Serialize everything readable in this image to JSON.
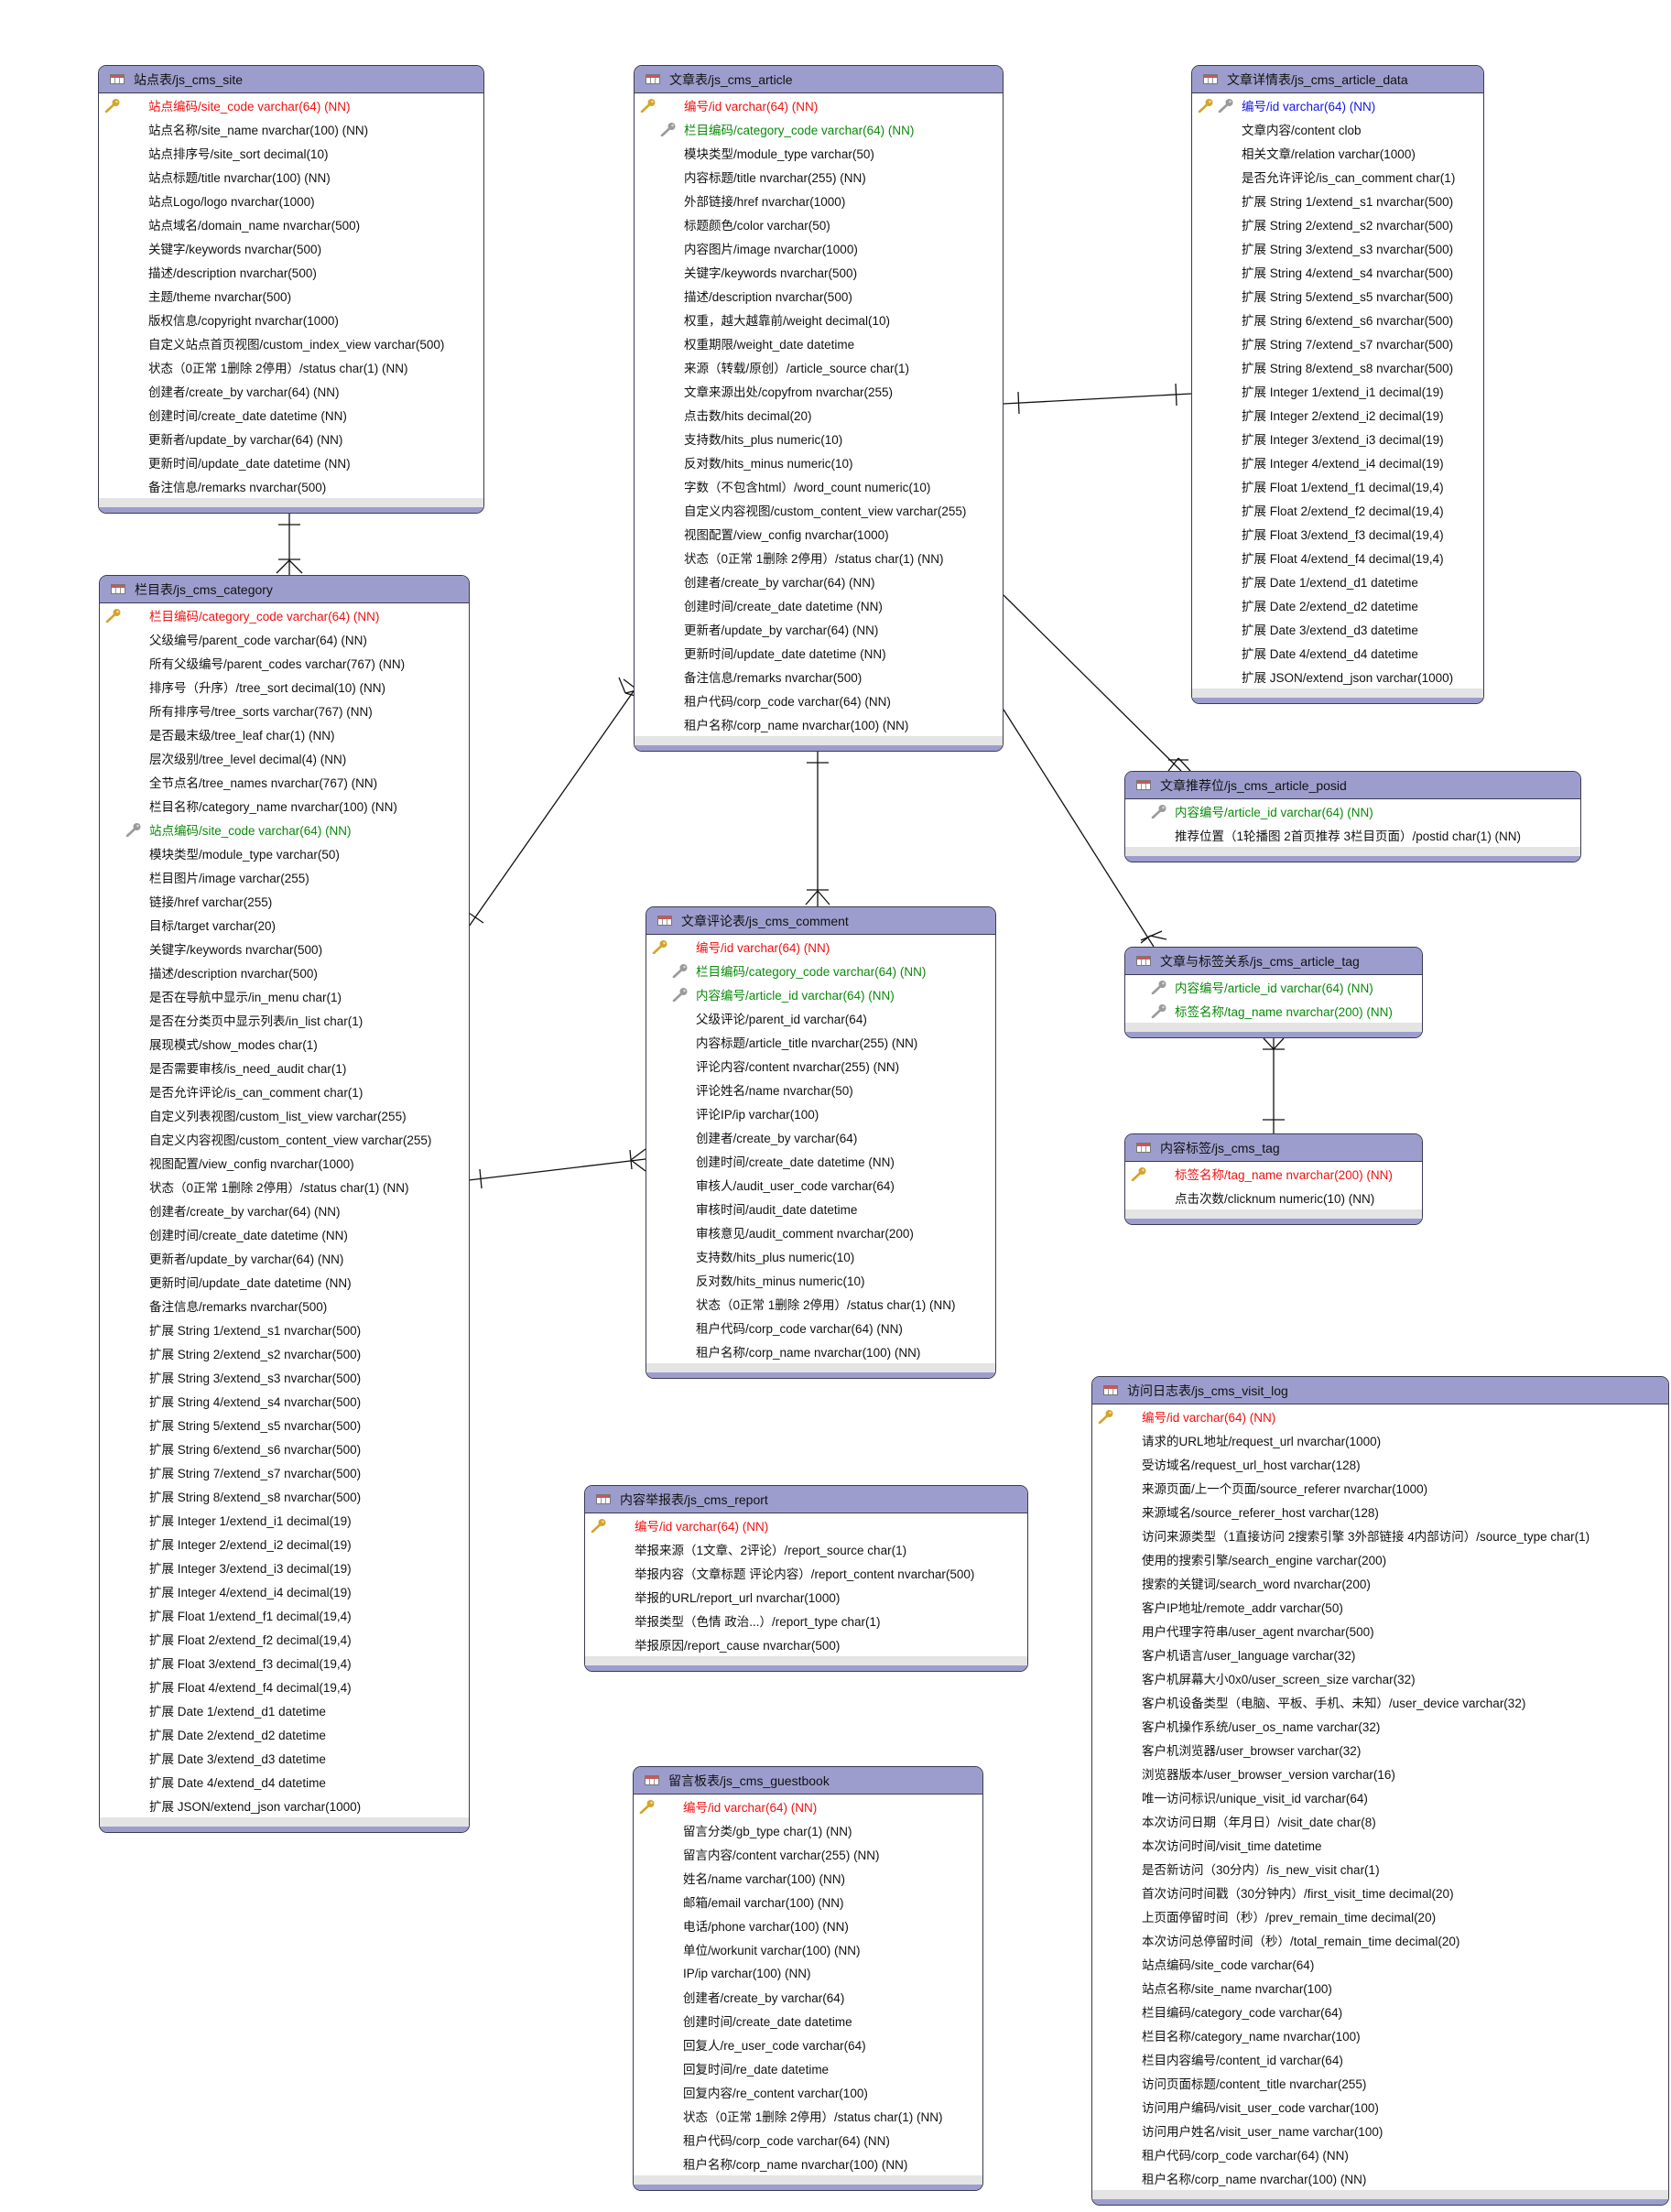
{
  "tables": [
    {
      "title": "站点表/js_cms_site",
      "fields": [
        {
          "text": "站点编码/site_code varchar(64) (NN)",
          "key": "primary-key"
        },
        {
          "text": "站点名称/site_name nvarchar(100) (NN)",
          "key": ""
        },
        {
          "text": "站点排序号/site_sort decimal(10)",
          "key": ""
        },
        {
          "text": "站点标题/title nvarchar(100) (NN)",
          "key": ""
        },
        {
          "text": "站点Logo/logo nvarchar(1000)",
          "key": ""
        },
        {
          "text": "站点域名/domain_name nvarchar(500)",
          "key": ""
        },
        {
          "text": "关键字/keywords nvarchar(500)",
          "key": ""
        },
        {
          "text": "描述/description nvarchar(500)",
          "key": ""
        },
        {
          "text": "主题/theme nvarchar(500)",
          "key": ""
        },
        {
          "text": "版权信息/copyright nvarchar(1000)",
          "key": ""
        },
        {
          "text": "自定义站点首页视图/custom_index_view varchar(500)",
          "key": ""
        },
        {
          "text": "状态（0正常 1删除 2停用）/status char(1) (NN)",
          "key": ""
        },
        {
          "text": "创建者/create_by varchar(64) (NN)",
          "key": ""
        },
        {
          "text": "创建时间/create_date datetime (NN)",
          "key": ""
        },
        {
          "text": "更新者/update_by varchar(64) (NN)",
          "key": ""
        },
        {
          "text": "更新时间/update_date datetime (NN)",
          "key": ""
        },
        {
          "text": "备注信息/remarks nvarchar(500)",
          "key": ""
        }
      ]
    },
    {
      "title": "栏目表/js_cms_category",
      "fields": [
        {
          "text": "栏目编码/category_code varchar(64) (NN)",
          "key": "primary-key"
        },
        {
          "text": "父级编号/parent_code varchar(64) (NN)",
          "key": ""
        },
        {
          "text": "所有父级编号/parent_codes varchar(767) (NN)",
          "key": ""
        },
        {
          "text": "排序号（升序）/tree_sort decimal(10) (NN)",
          "key": ""
        },
        {
          "text": "所有排序号/tree_sorts varchar(767) (NN)",
          "key": ""
        },
        {
          "text": "是否最末级/tree_leaf char(1) (NN)",
          "key": ""
        },
        {
          "text": "层次级别/tree_level decimal(4) (NN)",
          "key": ""
        },
        {
          "text": "全节点名/tree_names nvarchar(767) (NN)",
          "key": ""
        },
        {
          "text": "栏目名称/category_name nvarchar(100) (NN)",
          "key": ""
        },
        {
          "text": "站点编码/site_code varchar(64) (NN)",
          "key": "foreign-key"
        },
        {
          "text": "模块类型/module_type varchar(50)",
          "key": ""
        },
        {
          "text": "栏目图片/image varchar(255)",
          "key": ""
        },
        {
          "text": "链接/href varchar(255)",
          "key": ""
        },
        {
          "text": "目标/target varchar(20)",
          "key": ""
        },
        {
          "text": "关键字/keywords nvarchar(500)",
          "key": ""
        },
        {
          "text": "描述/description nvarchar(500)",
          "key": ""
        },
        {
          "text": "是否在导航中显示/in_menu char(1)",
          "key": ""
        },
        {
          "text": "是否在分类页中显示列表/in_list char(1)",
          "key": ""
        },
        {
          "text": "展现模式/show_modes char(1)",
          "key": ""
        },
        {
          "text": "是否需要审核/is_need_audit char(1)",
          "key": ""
        },
        {
          "text": "是否允许评论/is_can_comment char(1)",
          "key": ""
        },
        {
          "text": "自定义列表视图/custom_list_view varchar(255)",
          "key": ""
        },
        {
          "text": "自定义内容视图/custom_content_view varchar(255)",
          "key": ""
        },
        {
          "text": "视图配置/view_config nvarchar(1000)",
          "key": ""
        },
        {
          "text": "状态（0正常 1删除 2停用）/status char(1) (NN)",
          "key": ""
        },
        {
          "text": "创建者/create_by varchar(64) (NN)",
          "key": ""
        },
        {
          "text": "创建时间/create_date datetime (NN)",
          "key": ""
        },
        {
          "text": "更新者/update_by varchar(64) (NN)",
          "key": ""
        },
        {
          "text": "更新时间/update_date datetime (NN)",
          "key": ""
        },
        {
          "text": "备注信息/remarks nvarchar(500)",
          "key": ""
        },
        {
          "text": "扩展 String 1/extend_s1 nvarchar(500)",
          "key": ""
        },
        {
          "text": "扩展 String 2/extend_s2 nvarchar(500)",
          "key": ""
        },
        {
          "text": "扩展 String 3/extend_s3 nvarchar(500)",
          "key": ""
        },
        {
          "text": "扩展 String 4/extend_s4 nvarchar(500)",
          "key": ""
        },
        {
          "text": "扩展 String 5/extend_s5 nvarchar(500)",
          "key": ""
        },
        {
          "text": "扩展 String 6/extend_s6 nvarchar(500)",
          "key": ""
        },
        {
          "text": "扩展 String 7/extend_s7 nvarchar(500)",
          "key": ""
        },
        {
          "text": "扩展 String 8/extend_s8 nvarchar(500)",
          "key": ""
        },
        {
          "text": "扩展 Integer 1/extend_i1 decimal(19)",
          "key": ""
        },
        {
          "text": "扩展 Integer 2/extend_i2 decimal(19)",
          "key": ""
        },
        {
          "text": "扩展 Integer 3/extend_i3 decimal(19)",
          "key": ""
        },
        {
          "text": "扩展 Integer 4/extend_i4 decimal(19)",
          "key": ""
        },
        {
          "text": "扩展 Float 1/extend_f1 decimal(19,4)",
          "key": ""
        },
        {
          "text": "扩展 Float 2/extend_f2 decimal(19,4)",
          "key": ""
        },
        {
          "text": "扩展 Float 3/extend_f3 decimal(19,4)",
          "key": ""
        },
        {
          "text": "扩展 Float 4/extend_f4 decimal(19,4)",
          "key": ""
        },
        {
          "text": "扩展 Date 1/extend_d1 datetime",
          "key": ""
        },
        {
          "text": "扩展 Date 2/extend_d2 datetime",
          "key": ""
        },
        {
          "text": "扩展 Date 3/extend_d3 datetime",
          "key": ""
        },
        {
          "text": "扩展 Date 4/extend_d4 datetime",
          "key": ""
        },
        {
          "text": "扩展 JSON/extend_json varchar(1000)",
          "key": ""
        }
      ]
    },
    {
      "title": "文章表/js_cms_article",
      "fields": [
        {
          "text": "编号/id varchar(64) (NN)",
          "key": "primary-key"
        },
        {
          "text": "栏目编码/category_code varchar(64) (NN)",
          "key": "foreign-key"
        },
        {
          "text": "模块类型/module_type varchar(50)",
          "key": ""
        },
        {
          "text": "内容标题/title nvarchar(255) (NN)",
          "key": ""
        },
        {
          "text": "外部链接/href nvarchar(1000)",
          "key": ""
        },
        {
          "text": "标题颜色/color varchar(50)",
          "key": ""
        },
        {
          "text": "内容图片/image nvarchar(1000)",
          "key": ""
        },
        {
          "text": "关键字/keywords nvarchar(500)",
          "key": ""
        },
        {
          "text": "描述/description nvarchar(500)",
          "key": ""
        },
        {
          "text": "权重，越大越靠前/weight decimal(10)",
          "key": ""
        },
        {
          "text": "权重期限/weight_date datetime",
          "key": ""
        },
        {
          "text": "来源（转载/原创）/article_source char(1)",
          "key": ""
        },
        {
          "text": "文章来源出处/copyfrom nvarchar(255)",
          "key": ""
        },
        {
          "text": "点击数/hits decimal(20)",
          "key": ""
        },
        {
          "text": "支持数/hits_plus numeric(10)",
          "key": ""
        },
        {
          "text": "反对数/hits_minus numeric(10)",
          "key": ""
        },
        {
          "text": "字数（不包含html）/word_count numeric(10)",
          "key": ""
        },
        {
          "text": "自定义内容视图/custom_content_view varchar(255)",
          "key": ""
        },
        {
          "text": "视图配置/view_config nvarchar(1000)",
          "key": ""
        },
        {
          "text": "状态（0正常 1删除 2停用）/status char(1) (NN)",
          "key": ""
        },
        {
          "text": "创建者/create_by varchar(64) (NN)",
          "key": ""
        },
        {
          "text": "创建时间/create_date datetime (NN)",
          "key": ""
        },
        {
          "text": "更新者/update_by varchar(64) (NN)",
          "key": ""
        },
        {
          "text": "更新时间/update_date datetime (NN)",
          "key": ""
        },
        {
          "text": "备注信息/remarks nvarchar(500)",
          "key": ""
        },
        {
          "text": "租户代码/corp_code varchar(64) (NN)",
          "key": ""
        },
        {
          "text": "租户名称/corp_name nvarchar(100) (NN)",
          "key": ""
        }
      ]
    },
    {
      "title": "文章详情表/js_cms_article_data",
      "fields": [
        {
          "text": "编号/id varchar(64) (NN)",
          "key": "primary-foreign-key"
        },
        {
          "text": "文章内容/content clob",
          "key": ""
        },
        {
          "text": "相关文章/relation varchar(1000)",
          "key": ""
        },
        {
          "text": "是否允许评论/is_can_comment char(1)",
          "key": ""
        },
        {
          "text": "扩展 String 1/extend_s1 nvarchar(500)",
          "key": ""
        },
        {
          "text": "扩展 String 2/extend_s2 nvarchar(500)",
          "key": ""
        },
        {
          "text": "扩展 String 3/extend_s3 nvarchar(500)",
          "key": ""
        },
        {
          "text": "扩展 String 4/extend_s4 nvarchar(500)",
          "key": ""
        },
        {
          "text": "扩展 String 5/extend_s5 nvarchar(500)",
          "key": ""
        },
        {
          "text": "扩展 String 6/extend_s6 nvarchar(500)",
          "key": ""
        },
        {
          "text": "扩展 String 7/extend_s7 nvarchar(500)",
          "key": ""
        },
        {
          "text": "扩展 String 8/extend_s8 nvarchar(500)",
          "key": ""
        },
        {
          "text": "扩展 Integer 1/extend_i1 decimal(19)",
          "key": ""
        },
        {
          "text": "扩展 Integer 2/extend_i2 decimal(19)",
          "key": ""
        },
        {
          "text": "扩展 Integer 3/extend_i3 decimal(19)",
          "key": ""
        },
        {
          "text": "扩展 Integer 4/extend_i4 decimal(19)",
          "key": ""
        },
        {
          "text": "扩展 Float 1/extend_f1 decimal(19,4)",
          "key": ""
        },
        {
          "text": "扩展 Float 2/extend_f2 decimal(19,4)",
          "key": ""
        },
        {
          "text": "扩展 Float 3/extend_f3 decimal(19,4)",
          "key": ""
        },
        {
          "text": "扩展 Float 4/extend_f4 decimal(19,4)",
          "key": ""
        },
        {
          "text": "扩展 Date 1/extend_d1 datetime",
          "key": ""
        },
        {
          "text": "扩展 Date 2/extend_d2 datetime",
          "key": ""
        },
        {
          "text": "扩展 Date 3/extend_d3 datetime",
          "key": ""
        },
        {
          "text": "扩展 Date 4/extend_d4 datetime",
          "key": ""
        },
        {
          "text": "扩展 JSON/extend_json varchar(1000)",
          "key": ""
        }
      ]
    },
    {
      "title": "文章推荐位/js_cms_article_posid",
      "fields": [
        {
          "text": "内容编号/article_id varchar(64) (NN)",
          "key": "foreign-key"
        },
        {
          "text": "推荐位置（1轮播图 2首页推荐 3栏目页面）/postid char(1) (NN)",
          "key": ""
        }
      ]
    },
    {
      "title": "文章与标签关系/js_cms_article_tag",
      "fields": [
        {
          "text": "内容编号/article_id varchar(64) (NN)",
          "key": "foreign-key"
        },
        {
          "text": "标签名称/tag_name nvarchar(200) (NN)",
          "key": "foreign-key"
        }
      ]
    },
    {
      "title": "内容标签/js_cms_tag",
      "fields": [
        {
          "text": "标签名称/tag_name nvarchar(200) (NN)",
          "key": "primary-key"
        },
        {
          "text": "点击次数/clicknum numeric(10) (NN)",
          "key": ""
        }
      ]
    },
    {
      "title": "文章评论表/js_cms_comment",
      "fields": [
        {
          "text": "编号/id varchar(64) (NN)",
          "key": "primary-key"
        },
        {
          "text": "栏目编码/category_code varchar(64) (NN)",
          "key": "foreign-key"
        },
        {
          "text": "内容编号/article_id varchar(64) (NN)",
          "key": "foreign-key"
        },
        {
          "text": "父级评论/parent_id varchar(64)",
          "key": ""
        },
        {
          "text": "内容标题/article_title nvarchar(255) (NN)",
          "key": ""
        },
        {
          "text": "评论内容/content nvarchar(255) (NN)",
          "key": ""
        },
        {
          "text": "评论姓名/name nvarchar(50)",
          "key": ""
        },
        {
          "text": "评论IP/ip varchar(100)",
          "key": ""
        },
        {
          "text": "创建者/create_by varchar(64)",
          "key": ""
        },
        {
          "text": "创建时间/create_date datetime (NN)",
          "key": ""
        },
        {
          "text": "审核人/audit_user_code varchar(64)",
          "key": ""
        },
        {
          "text": "审核时间/audit_date datetime",
          "key": ""
        },
        {
          "text": "审核意见/audit_comment nvarchar(200)",
          "key": ""
        },
        {
          "text": "支持数/hits_plus numeric(10)",
          "key": ""
        },
        {
          "text": "反对数/hits_minus numeric(10)",
          "key": ""
        },
        {
          "text": "状态（0正常 1删除 2停用）/status char(1) (NN)",
          "key": ""
        },
        {
          "text": "租户代码/corp_code varchar(64) (NN)",
          "key": ""
        },
        {
          "text": "租户名称/corp_name nvarchar(100) (NN)",
          "key": ""
        }
      ]
    },
    {
      "title": "内容举报表/js_cms_report",
      "fields": [
        {
          "text": "编号/id varchar(64) (NN)",
          "key": "primary-key"
        },
        {
          "text": "举报来源（1文章、2评论）/report_source char(1)",
          "key": ""
        },
        {
          "text": "举报内容（文章标题 评论内容）/report_content nvarchar(500)",
          "key": ""
        },
        {
          "text": "举报的URL/report_url nvarchar(1000)",
          "key": ""
        },
        {
          "text": "举报类型（色情 政治...）/report_type char(1)",
          "key": ""
        },
        {
          "text": "举报原因/report_cause nvarchar(500)",
          "key": ""
        }
      ]
    },
    {
      "title": "留言板表/js_cms_guestbook",
      "fields": [
        {
          "text": "编号/id varchar(64) (NN)",
          "key": "primary-key"
        },
        {
          "text": "留言分类/gb_type char(1) (NN)",
          "key": ""
        },
        {
          "text": "留言内容/content varchar(255) (NN)",
          "key": ""
        },
        {
          "text": "姓名/name varchar(100) (NN)",
          "key": ""
        },
        {
          "text": "邮箱/email varchar(100) (NN)",
          "key": ""
        },
        {
          "text": "电话/phone varchar(100) (NN)",
          "key": ""
        },
        {
          "text": "单位/workunit varchar(100) (NN)",
          "key": ""
        },
        {
          "text": "IP/ip varchar(100) (NN)",
          "key": ""
        },
        {
          "text": "创建者/create_by varchar(64)",
          "key": ""
        },
        {
          "text": "创建时间/create_date datetime",
          "key": ""
        },
        {
          "text": "回复人/re_user_code varchar(64)",
          "key": ""
        },
        {
          "text": "回复时间/re_date datetime",
          "key": ""
        },
        {
          "text": "回复内容/re_content varchar(100)",
          "key": ""
        },
        {
          "text": "状态（0正常 1删除 2停用）/status char(1) (NN)",
          "key": ""
        },
        {
          "text": "租户代码/corp_code varchar(64) (NN)",
          "key": ""
        },
        {
          "text": "租户名称/corp_name nvarchar(100) (NN)",
          "key": ""
        }
      ]
    },
    {
      "title": "访问日志表/js_cms_visit_log",
      "fields": [
        {
          "text": "编号/id varchar(64) (NN)",
          "key": "primary-key"
        },
        {
          "text": "请求的URL地址/request_url nvarchar(1000)",
          "key": ""
        },
        {
          "text": "受访域名/request_url_host varchar(128)",
          "key": ""
        },
        {
          "text": "来源页面/上一个页面/source_referer nvarchar(1000)",
          "key": ""
        },
        {
          "text": "来源域名/source_referer_host varchar(128)",
          "key": ""
        },
        {
          "text": "访问来源类型（1直接访问 2搜索引擎 3外部链接 4内部访问）/source_type char(1)",
          "key": ""
        },
        {
          "text": "使用的搜索引擎/search_engine varchar(200)",
          "key": ""
        },
        {
          "text": "搜索的关键词/search_word nvarchar(200)",
          "key": ""
        },
        {
          "text": "客户IP地址/remote_addr varchar(50)",
          "key": ""
        },
        {
          "text": "用户代理字符串/user_agent nvarchar(500)",
          "key": ""
        },
        {
          "text": "客户机语言/user_language varchar(32)",
          "key": ""
        },
        {
          "text": "客户机屏幕大小0x0/user_screen_size varchar(32)",
          "key": ""
        },
        {
          "text": "客户机设备类型（电脑、平板、手机、未知）/user_device varchar(32)",
          "key": ""
        },
        {
          "text": "客户机操作系统/user_os_name varchar(32)",
          "key": ""
        },
        {
          "text": "客户机浏览器/user_browser varchar(32)",
          "key": ""
        },
        {
          "text": "浏览器版本/user_browser_version varchar(16)",
          "key": ""
        },
        {
          "text": "唯一访问标识/unique_visit_id varchar(64)",
          "key": ""
        },
        {
          "text": "本次访问日期（年月日）/visit_date char(8)",
          "key": ""
        },
        {
          "text": "本次访问时间/visit_time datetime",
          "key": ""
        },
        {
          "text": "是否新访问（30分内）/is_new_visit char(1)",
          "key": ""
        },
        {
          "text": "首次访问时间戳（30分钟内）/first_visit_time decimal(20)",
          "key": ""
        },
        {
          "text": "上页面停留时间（秒）/prev_remain_time decimal(20)",
          "key": ""
        },
        {
          "text": "本次访问总停留时间（秒）/total_remain_time decimal(20)",
          "key": ""
        },
        {
          "text": "站点编码/site_code varchar(64)",
          "key": ""
        },
        {
          "text": "站点名称/site_name nvarchar(100)",
          "key": ""
        },
        {
          "text": "栏目编码/category_code varchar(64)",
          "key": ""
        },
        {
          "text": "栏目名称/category_name nvarchar(100)",
          "key": ""
        },
        {
          "text": "栏目内容编号/content_id varchar(64)",
          "key": ""
        },
        {
          "text": "访问页面标题/content_title nvarchar(255)",
          "key": ""
        },
        {
          "text": "访问用户编码/visit_user_code varchar(100)",
          "key": ""
        },
        {
          "text": "访问用户姓名/visit_user_name varchar(100)",
          "key": ""
        },
        {
          "text": "租户代码/corp_code varchar(64) (NN)",
          "key": ""
        },
        {
          "text": "租户名称/corp_name nvarchar(100) (NN)",
          "key": ""
        }
      ]
    }
  ],
  "colors": {
    "header": "#9d9dcd",
    "primary_key_text": "#f01010",
    "foreign_key_text": "#0a8a0a",
    "primary_foreign_key_text": "#1515e0",
    "primary_key_icon": "#d4a52a",
    "foreign_key_icon": "#9a9a9a"
  }
}
